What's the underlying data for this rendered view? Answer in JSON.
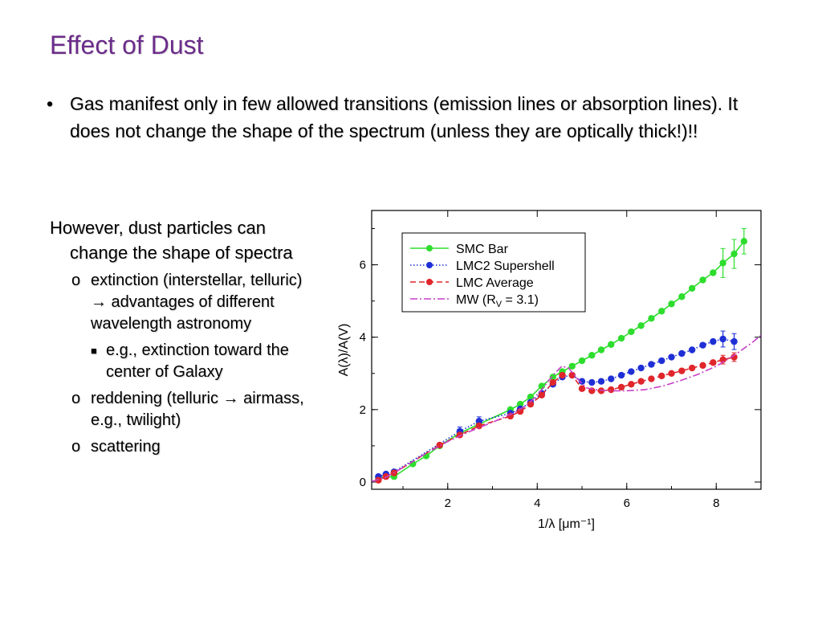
{
  "slide": {
    "title": "Effect of Dust",
    "bullet1": "Gas manifest only in few allowed transitions (emission lines or absorption lines). It does not change the shape of the spectrum (unless they are optically thick!)!!",
    "intro": "However, dust particles can change the shape of spectra",
    "sub1a": "extinction (interstellar, telluric) ",
    "arrow": "→",
    "sub1b": " advantages of different wavelength astronomy",
    "subsub1": "e.g., extinction toward the center of Galaxy",
    "sub2a": "reddening (telluric ",
    "sub2b": " airmass, e.g., twilight)",
    "sub3": "scattering",
    "bullet_char": "•",
    "sub_marker": "o",
    "subsub_marker": "■"
  },
  "chart_data": {
    "type": "line",
    "xlabel": "1/λ [μm⁻¹]",
    "ylabel": "A(λ)/A(V)",
    "xlim": [
      0.3,
      9.0
    ],
    "ylim": [
      -0.2,
      7.5
    ],
    "xticks": [
      2,
      4,
      6,
      8
    ],
    "yticks": [
      0,
      2,
      4,
      6
    ],
    "legend": "top-left",
    "series": [
      {
        "name": "SMC Bar",
        "style": "solid",
        "markers": true,
        "color": "#2edd2e",
        "x": [
          0.45,
          0.8,
          1.22,
          1.52,
          1.82,
          2.27,
          2.7,
          3.4,
          3.62,
          3.85,
          4.1,
          4.35,
          4.56,
          4.78,
          5.0,
          5.22,
          5.43,
          5.65,
          5.88,
          6.1,
          6.32,
          6.55,
          6.78,
          7.0,
          7.23,
          7.46,
          7.7,
          7.93,
          8.15,
          8.4,
          8.62
        ],
        "y": [
          0.12,
          0.15,
          0.5,
          0.72,
          1.0,
          1.35,
          1.6,
          2.0,
          2.15,
          2.35,
          2.65,
          2.9,
          3.05,
          3.2,
          3.35,
          3.5,
          3.65,
          3.8,
          3.97,
          4.15,
          4.32,
          4.52,
          4.72,
          4.92,
          5.12,
          5.35,
          5.58,
          5.78,
          6.05,
          6.3,
          6.65
        ],
        "err": [
          0,
          0,
          0,
          0,
          0,
          0,
          0,
          0,
          0,
          0,
          0,
          0,
          0,
          0,
          0,
          0,
          0,
          0,
          0,
          0,
          0,
          0,
          0,
          0,
          0,
          0,
          0,
          0,
          0.4,
          0.4,
          0.35
        ]
      },
      {
        "name": "LMC2 Supershell",
        "style": "dotted",
        "markers": true,
        "color": "#1f2fd6",
        "x": [
          0.45,
          0.62,
          0.8,
          2.27,
          2.7,
          3.4,
          3.62,
          3.85,
          4.1,
          4.35,
          4.56,
          4.78,
          5.0,
          5.22,
          5.43,
          5.65,
          5.88,
          6.1,
          6.32,
          6.55,
          6.78,
          7.0,
          7.23,
          7.46,
          7.7,
          7.93,
          8.15,
          8.4
        ],
        "y": [
          0.15,
          0.22,
          0.28,
          1.4,
          1.68,
          1.9,
          2.02,
          2.2,
          2.45,
          2.7,
          2.9,
          2.95,
          2.78,
          2.75,
          2.78,
          2.85,
          2.95,
          3.05,
          3.15,
          3.25,
          3.35,
          3.45,
          3.55,
          3.65,
          3.78,
          3.88,
          3.95,
          3.88
        ],
        "err": [
          0,
          0,
          0,
          0.12,
          0.12,
          0,
          0,
          0,
          0,
          0,
          0,
          0,
          0,
          0,
          0,
          0,
          0,
          0,
          0,
          0,
          0,
          0,
          0,
          0,
          0,
          0,
          0.22,
          0.22
        ]
      },
      {
        "name": "LMC Average",
        "style": "dashed",
        "markers": true,
        "color": "#e0262b",
        "x": [
          0.45,
          0.62,
          0.8,
          1.82,
          2.27,
          2.7,
          3.4,
          3.62,
          3.85,
          4.1,
          4.35,
          4.56,
          4.78,
          5.0,
          5.22,
          5.43,
          5.65,
          5.88,
          6.1,
          6.32,
          6.55,
          6.78,
          7.0,
          7.23,
          7.46,
          7.7,
          7.93,
          8.15,
          8.4
        ],
        "y": [
          0.05,
          0.15,
          0.25,
          1.02,
          1.3,
          1.55,
          1.82,
          1.95,
          2.15,
          2.4,
          2.75,
          2.95,
          2.95,
          2.58,
          2.52,
          2.52,
          2.55,
          2.62,
          2.7,
          2.78,
          2.85,
          2.93,
          3.0,
          3.07,
          3.15,
          3.22,
          3.3,
          3.38,
          3.45
        ],
        "err": [
          0,
          0,
          0,
          0,
          0,
          0,
          0,
          0,
          0,
          0,
          0,
          0,
          0,
          0,
          0,
          0,
          0,
          0,
          0,
          0,
          0,
          0,
          0,
          0,
          0,
          0,
          0,
          0.12,
          0.12
        ]
      },
      {
        "name": "MW (R",
        "name_sub": "V",
        "name_tail": " = 3.1)",
        "style": "dashdot",
        "markers": false,
        "color": "#c83fc8",
        "x": [
          0.3,
          0.6,
          1.0,
          1.5,
          2.0,
          2.5,
          3.0,
          3.5,
          3.8,
          4.1,
          4.35,
          4.55,
          4.7,
          4.9,
          5.1,
          5.3,
          5.6,
          6.0,
          6.4,
          6.8,
          7.2,
          7.6,
          8.0,
          8.4,
          8.8,
          9.0
        ],
        "y": [
          0.02,
          0.12,
          0.4,
          0.78,
          1.12,
          1.4,
          1.65,
          1.92,
          2.15,
          2.55,
          2.95,
          3.2,
          3.15,
          2.85,
          2.6,
          2.55,
          2.52,
          2.52,
          2.55,
          2.65,
          2.8,
          2.98,
          3.2,
          3.5,
          3.85,
          4.05
        ],
        "err": []
      }
    ]
  }
}
